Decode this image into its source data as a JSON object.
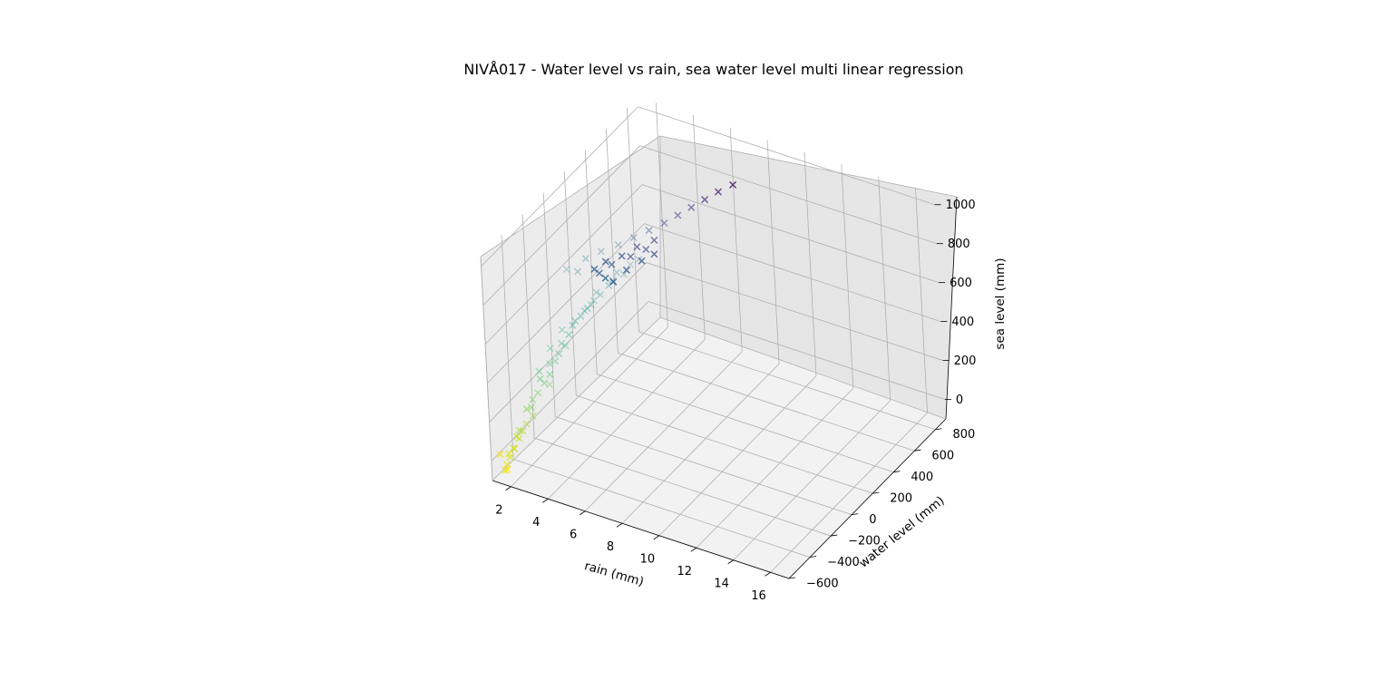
{
  "chart_data": {
    "type": "scatter",
    "subtype": "3d-scatter",
    "title": "NIVÅ017 - Water level vs rain, sea water level  multi linear regression",
    "xlabel": "rain (mm)",
    "ylabel": "water level (mm)",
    "zlabel": "sea level (mm)",
    "marker": "x",
    "colormap": "viridis",
    "xlim": [
      1,
      17
    ],
    "ylim": [
      -600,
      900
    ],
    "zlim": [
      -100,
      1050
    ],
    "xticks": [
      "2",
      "4",
      "6",
      "8",
      "10",
      "12",
      "14",
      "16"
    ],
    "yticks": [
      "−600",
      "−400",
      "−200",
      "0",
      "200",
      "400",
      "600",
      "800"
    ],
    "zticks": [
      "0",
      "200",
      "400",
      "600",
      "800",
      "1000"
    ],
    "grid": true,
    "series": [
      {
        "x": [
          1.5,
          1.6,
          1.5,
          1.7,
          1.6,
          1.5,
          1.8,
          1.6,
          1.9,
          1.7,
          2.0,
          1.8,
          2.2,
          2.0,
          1.9,
          2.1,
          2.3,
          2.2,
          2.5,
          2.4,
          2.6,
          2.3,
          2.8,
          2.7,
          2.9,
          3.1,
          2.6,
          3.0,
          3.2,
          2.5,
          2.9,
          3.3,
          3.6,
          3.4,
          3.8,
          4.0,
          3.7,
          4.2,
          4.5,
          4.1,
          3.9,
          4.6,
          5.0,
          4.8,
          5.2,
          5.5,
          3.5,
          3.2,
          3.8,
          4.3,
          4.9,
          5.4,
          5.9,
          6.4,
          6.8,
          7.2,
          7.6,
          8.0,
          8.4,
          4.4,
          4.7,
          5.1,
          5.6,
          6.0,
          4.2,
          4.6,
          5.3,
          5.8,
          4.0,
          4.4,
          5.0,
          5.5,
          6.1
        ],
        "y": [
          -540,
          -560,
          -520,
          -500,
          -580,
          -600,
          -470,
          -530,
          -450,
          -510,
          -430,
          -490,
          -400,
          -420,
          -480,
          -380,
          -360,
          -410,
          -330,
          -350,
          -300,
          -340,
          -270,
          -310,
          -250,
          -220,
          -290,
          -240,
          -200,
          -260,
          -210,
          -180,
          -150,
          -170,
          -120,
          -90,
          -130,
          -60,
          -30,
          -80,
          -100,
          -10,
          30,
          0,
          60,
          90,
          -140,
          -190,
          -110,
          -50,
          10,
          70,
          130,
          190,
          250,
          310,
          370,
          430,
          500,
          -40,
          -20,
          40,
          100,
          150,
          -60,
          -10,
          50,
          110,
          -70,
          -30,
          20,
          80,
          140
        ],
        "z": [
          -60,
          -20,
          10,
          30,
          -40,
          50,
          70,
          0,
          100,
          40,
          130,
          90,
          160,
          200,
          120,
          230,
          260,
          210,
          300,
          330,
          280,
          360,
          390,
          340,
          420,
          450,
          380,
          470,
          500,
          440,
          520,
          540,
          580,
          560,
          610,
          640,
          600,
          660,
          700,
          680,
          620,
          720,
          740,
          760,
          780,
          800,
          800,
          830,
          860,
          880,
          900,
          920,
          940,
          960,
          980,
          1000,
          1020,
          1040,
          1050,
          740,
          720,
          760,
          790,
          810,
          770,
          800,
          830,
          850,
          790,
          820,
          840,
          870,
          890
        ],
        "c": [
          1.0,
          0.98,
          0.96,
          0.94,
          0.97,
          0.99,
          0.92,
          0.95,
          0.9,
          0.93,
          0.88,
          0.91,
          0.85,
          0.82,
          0.87,
          0.8,
          0.78,
          0.81,
          0.75,
          0.73,
          0.77,
          0.71,
          0.7,
          0.72,
          0.68,
          0.66,
          0.7,
          0.64,
          0.62,
          0.67,
          0.6,
          0.58,
          0.55,
          0.57,
          0.52,
          0.5,
          0.53,
          0.48,
          0.46,
          0.49,
          0.51,
          0.44,
          0.42,
          0.43,
          0.4,
          0.38,
          0.47,
          0.5,
          0.45,
          0.4,
          0.35,
          0.3,
          0.26,
          0.22,
          0.18,
          0.15,
          0.12,
          0.08,
          0.04,
          0.34,
          0.32,
          0.29,
          0.27,
          0.24,
          0.31,
          0.28,
          0.25,
          0.23,
          0.3,
          0.27,
          0.24,
          0.21,
          0.19
        ],
        "alpha": [
          0.9,
          0.85,
          0.8,
          0.75,
          0.85,
          0.9,
          0.7,
          0.8,
          0.65,
          0.75,
          0.6,
          0.7,
          0.55,
          0.6,
          0.65,
          0.5,
          0.45,
          0.55,
          0.45,
          0.5,
          0.4,
          0.45,
          0.4,
          0.45,
          0.4,
          0.35,
          0.4,
          0.35,
          0.4,
          0.35,
          0.35,
          0.4,
          0.35,
          0.4,
          0.35,
          0.3,
          0.35,
          0.3,
          0.35,
          0.3,
          0.35,
          0.3,
          0.25,
          0.3,
          0.25,
          0.3,
          0.35,
          0.3,
          0.35,
          0.35,
          0.35,
          0.4,
          0.45,
          0.5,
          0.55,
          0.6,
          0.7,
          0.75,
          0.8,
          0.85,
          0.9,
          0.85,
          0.8,
          0.75,
          0.8,
          0.75,
          0.7,
          0.65,
          0.85,
          0.8,
          0.75,
          0.7,
          0.65
        ]
      }
    ]
  }
}
